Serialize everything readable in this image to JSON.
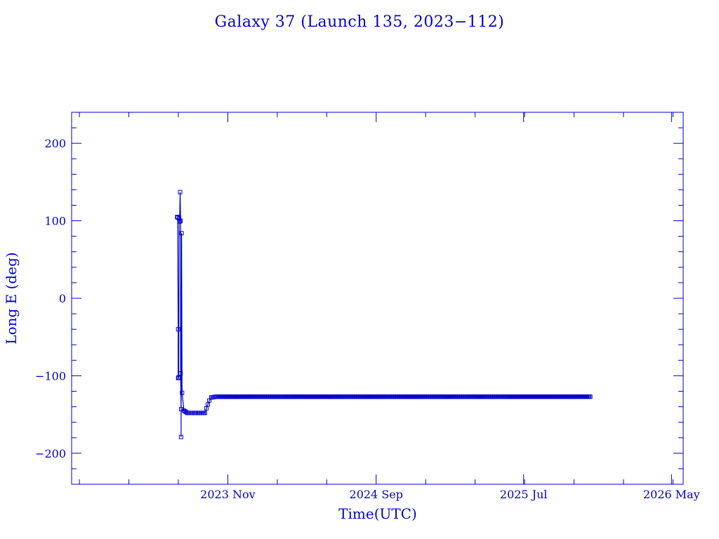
{
  "colors": {
    "ink": "#0000cc",
    "background": "#ffffff"
  },
  "chart_data": {
    "type": "line",
    "title": "Galaxy 37 (Launch 135, 2023−112)",
    "xlabel": "Time(UTC)",
    "ylabel": "Long E (deg)",
    "x_scale": "time",
    "xlim": [
      "2022-12-15",
      "2026-05-25"
    ],
    "ylim": [
      -240,
      240
    ],
    "x_ticks": [
      {
        "date": "2023-11-01",
        "label": "2023 Nov"
      },
      {
        "date": "2024-09-01",
        "label": "2024 Sep"
      },
      {
        "date": "2025-07-01",
        "label": "2025 Jul"
      },
      {
        "date": "2026-05-01",
        "label": "2026 May"
      }
    ],
    "y_ticks": [
      {
        "value": 200,
        "label": "200"
      },
      {
        "value": 100,
        "label": "100"
      },
      {
        "value": 0,
        "label": "0"
      },
      {
        "value": -100,
        "label": "−100"
      },
      {
        "value": -200,
        "label": "−200"
      }
    ],
    "grid": false,
    "marker": "square",
    "series": [
      {
        "name": "",
        "points": [
          {
            "x": "2023-07-20",
            "y": 105
          },
          {
            "x": "2023-07-21",
            "y": 104
          },
          {
            "x": "2023-07-22",
            "y": -40
          },
          {
            "x": "2023-07-22",
            "y": -103
          },
          {
            "x": "2023-07-23",
            "y": -102
          },
          {
            "x": "2023-07-24",
            "y": 103
          },
          {
            "x": "2023-07-25",
            "y": 99
          },
          {
            "x": "2023-07-26",
            "y": 137
          },
          {
            "x": "2023-07-27",
            "y": 100
          },
          {
            "x": "2023-07-27",
            "y": -97
          },
          {
            "x": "2023-07-28",
            "y": -143
          },
          {
            "x": "2023-07-28",
            "y": -179
          },
          {
            "x": "2023-07-29",
            "y": 84
          },
          {
            "x": "2023-07-30",
            "y": -122
          },
          {
            "x": "2023-08-03",
            "y": -145
          },
          {
            "x": "2023-08-10",
            "y": -148
          },
          {
            "x": "2023-08-25",
            "y": -148
          },
          {
            "x": "2023-09-15",
            "y": -148
          },
          {
            "x": "2023-09-18",
            "y": -142
          },
          {
            "x": "2023-09-21",
            "y": -137
          },
          {
            "x": "2023-09-24",
            "y": -132
          },
          {
            "x": "2023-09-28",
            "y": -128
          },
          {
            "x": "2023-10-08",
            "y": -127
          },
          {
            "x": "2024-01-01",
            "y": -127
          },
          {
            "x": "2024-06-01",
            "y": -127
          },
          {
            "x": "2025-01-01",
            "y": -127
          },
          {
            "x": "2025-06-01",
            "y": -127
          },
          {
            "x": "2025-11-15",
            "y": -127
          }
        ]
      }
    ]
  }
}
